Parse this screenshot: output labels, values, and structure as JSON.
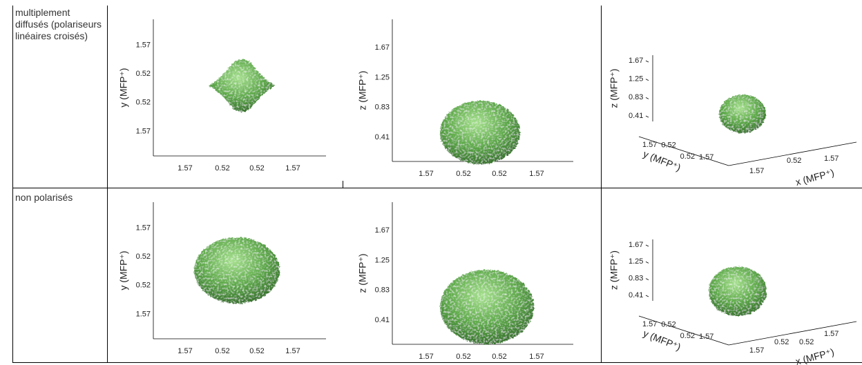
{
  "rows": [
    {
      "label": "multiplement diffusés (polariseurs linéaires croisés)",
      "panels": [
        {
          "ylabel": "y (MFP⁺)",
          "yticks": [
            "1.57",
            "0.52",
            "0.52",
            "1.57"
          ],
          "xticks": [
            "1.57",
            "0.52",
            "0.52",
            "1.57"
          ]
        },
        {
          "ylabel": "z (MFP⁺)",
          "yticks": [
            "1.67",
            "1.25",
            "0.83",
            "0.41"
          ],
          "xticks": [
            "1.57",
            "0.52",
            "0.52",
            "1.57"
          ]
        },
        {
          "zlabel": "z (MFP⁺)",
          "zticks": [
            "1.67",
            "1.25",
            "0.83",
            "0.41"
          ],
          "ylabel": "y (MFP⁺)",
          "yticks": [
            "1.57",
            "0.52",
            "0.52",
            "1.57"
          ],
          "xlabel": "x (MFP⁺)",
          "xticks": [
            "1.57",
            "0.52",
            "1.57"
          ]
        }
      ]
    },
    {
      "label": "non polarisés",
      "panels": [
        {
          "ylabel": "y (MFP⁺)",
          "yticks": [
            "1.57",
            "0.52",
            "0.52",
            "1.57"
          ],
          "xticks": [
            "1.57",
            "0.52",
            "0.52",
            "1.57"
          ]
        },
        {
          "ylabel": "z (MFP⁺)",
          "yticks": [
            "1.67",
            "1.25",
            "0.83",
            "0.41"
          ],
          "xticks": [
            "1.57",
            "0.52",
            "0.52",
            "1.57"
          ]
        },
        {
          "zlabel": "z (MFP⁺)",
          "zticks": [
            "1.67",
            "1.25",
            "0.83",
            "0.41"
          ],
          "ylabel": "y (MFP⁺)",
          "yticks": [
            "1.57",
            "0.52",
            "0.52",
            "1.57"
          ],
          "xlabel": "x (MFP⁺)",
          "xticks": [
            "1.57",
            "0.52",
            "0.52",
            "1.57"
          ]
        }
      ]
    }
  ]
}
